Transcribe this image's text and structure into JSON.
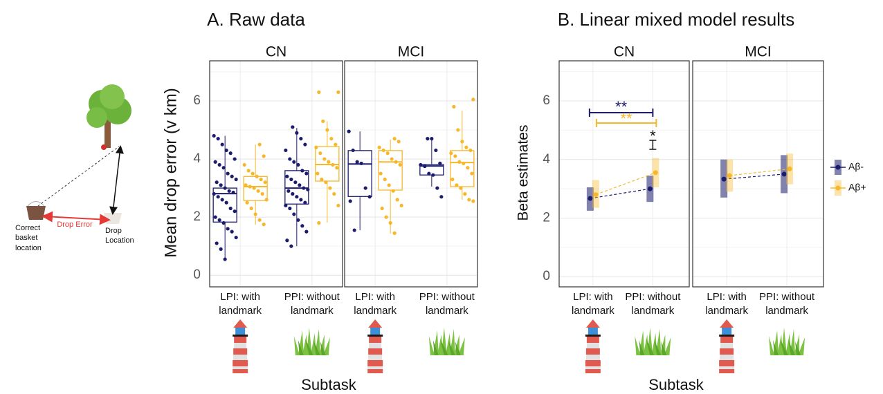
{
  "diagram": {
    "drop_error": "Drop Error",
    "correct": "Correct basket location",
    "drop": "Drop Location"
  },
  "chart_data": [
    {
      "type": "box",
      "title": "A. Raw data",
      "ylabel": "Mean drop error (v km)",
      "xlabel": "Subtask",
      "categories": [
        "LPI: with landmark",
        "PPI: without landmark"
      ],
      "series": [
        {
          "color": "#1c1c6c"
        },
        {
          "color": "#f6b82a"
        }
      ],
      "ylim": [
        -0.4,
        7.38
      ],
      "yticks": [
        0,
        2,
        4,
        6
      ],
      "minor_yticks": [
        1,
        3,
        5,
        7
      ],
      "grid": true,
      "facets": [
        {
          "title": "CN",
          "boxes": [
            [
              {
                "whislo": 0.55,
                "q1": 1.83,
                "med": 2.81,
                "q3": 3.0,
                "whishi": 4.8,
                "points": [
                  4.8,
                  4.7,
                  4.5,
                  4.3,
                  4.2,
                  4.0,
                  3.9,
                  3.8,
                  3.7,
                  3.5,
                  3.4,
                  3.3,
                  3.2,
                  3.1,
                  3.0,
                  2.9,
                  2.85,
                  2.8,
                  2.7,
                  2.6,
                  2.5,
                  2.3,
                  2.2,
                  2.0,
                  1.9,
                  1.8,
                  1.6,
                  1.5,
                  1.3,
                  1.1,
                  0.9,
                  0.55
                ]
              },
              {
                "whislo": 1.0,
                "q1": 2.45,
                "med": 3.0,
                "q3": 3.6,
                "whishi": 5.07,
                "points": [
                  5.1,
                  4.9,
                  4.7,
                  4.5,
                  4.3,
                  4.0,
                  3.9,
                  3.8,
                  3.6,
                  3.5,
                  3.4,
                  3.3,
                  3.2,
                  3.1,
                  3.0,
                  2.95,
                  2.9,
                  2.8,
                  2.7,
                  2.6,
                  2.5,
                  2.4,
                  2.3,
                  2.1,
                  1.9,
                  1.7,
                  1.5,
                  1.2,
                  1.0
                ]
              }
            ],
            [
              {
                "whislo": 1.74,
                "q1": 2.57,
                "med": 3.05,
                "q3": 3.4,
                "whishi": 4.5,
                "points": [
                  4.5,
                  4.1,
                  3.8,
                  3.6,
                  3.5,
                  3.4,
                  3.3,
                  3.2,
                  3.1,
                  3.05,
                  3.0,
                  2.9,
                  2.8,
                  2.6,
                  2.5,
                  2.3,
                  2.1,
                  1.9,
                  1.75
                ]
              },
              {
                "whislo": 1.81,
                "q1": 3.24,
                "med": 3.81,
                "q3": 4.43,
                "whishi": 5.3,
                "points": [
                  6.3,
                  6.3,
                  5.3,
                  5.0,
                  4.7,
                  4.5,
                  4.4,
                  4.2,
                  4.0,
                  3.9,
                  3.8,
                  3.7,
                  3.5,
                  3.3,
                  3.2,
                  3.0,
                  2.8,
                  2.4,
                  1.8
                ]
              }
            ]
          ]
        },
        {
          "title": "MCI",
          "boxes": [
            [
              {
                "whislo": 1.55,
                "q1": 2.71,
                "med": 3.83,
                "q3": 4.29,
                "whishi": 4.95,
                "points": [
                  4.95,
                  4.3,
                  3.9,
                  3.85,
                  3.0,
                  2.7,
                  2.55,
                  1.55
                ]
              },
              {
                "whislo": 3.05,
                "q1": 3.45,
                "med": 3.76,
                "q3": 3.81,
                "whishi": 4.71,
                "points": [
                  4.7,
                  4.7,
                  4.3,
                  3.85,
                  3.8,
                  3.75,
                  3.5,
                  3.45,
                  3.0,
                  2.7
                ]
              }
            ],
            [
              {
                "whislo": 1.43,
                "q1": 2.93,
                "med": 3.9,
                "q3": 4.29,
                "whishi": 4.67,
                "points": [
                  4.7,
                  4.6,
                  4.4,
                  4.3,
                  4.2,
                  4.0,
                  3.9,
                  3.8,
                  3.5,
                  3.3,
                  3.1,
                  2.9,
                  2.6,
                  2.4,
                  2.3,
                  2.0,
                  1.8,
                  1.45
                ]
              },
              {
                "whislo": 2.6,
                "q1": 3.05,
                "med": 3.88,
                "q3": 4.29,
                "whishi": 5.67,
                "points": [
                  6.05,
                  5.8,
                  5.0,
                  4.6,
                  4.4,
                  4.3,
                  4.2,
                  4.1,
                  3.9,
                  3.85,
                  3.7,
                  3.5,
                  3.3,
                  3.1,
                  3.0,
                  2.8,
                  2.6,
                  2.55
                ]
              }
            ]
          ]
        }
      ]
    },
    {
      "type": "pointrange",
      "title": "B. Linear mixed model results",
      "ylabel": "Beta estimates",
      "xlabel": "Subtask",
      "categories": [
        "LPI: with landmark",
        "PPI: without landmark"
      ],
      "series": [
        {
          "name": "Aβ-",
          "color": "#1c1c6c"
        },
        {
          "name": "Aβ+",
          "color": "#f6b82a"
        }
      ],
      "ylim": [
        -0.35,
        7.37
      ],
      "yticks": [
        0,
        2,
        4,
        6
      ],
      "minor_yticks": [
        1,
        3,
        5,
        7
      ],
      "grid": true,
      "legend": "right",
      "facets": [
        {
          "title": "CN",
          "annotations": [
            "**",
            "**",
            "*"
          ],
          "points": [
            [
              {
                "value": 2.67,
                "low": 2.25,
                "high": 3.05
              },
              {
                "value": 3.0,
                "low": 2.55,
                "high": 3.45
              }
            ],
            [
              {
                "value": 2.8,
                "low": 2.35,
                "high": 3.3
              },
              {
                "value": 3.55,
                "low": 3.05,
                "high": 4.05
              }
            ]
          ]
        },
        {
          "title": "MCI",
          "points": [
            [
              {
                "value": 3.33,
                "low": 2.7,
                "high": 4.0
              },
              {
                "value": 3.5,
                "low": 2.85,
                "high": 4.15
              }
            ],
            [
              {
                "value": 3.45,
                "low": 2.9,
                "high": 4.0
              },
              {
                "value": 3.68,
                "low": 3.15,
                "high": 4.2
              }
            ]
          ]
        }
      ]
    }
  ]
}
